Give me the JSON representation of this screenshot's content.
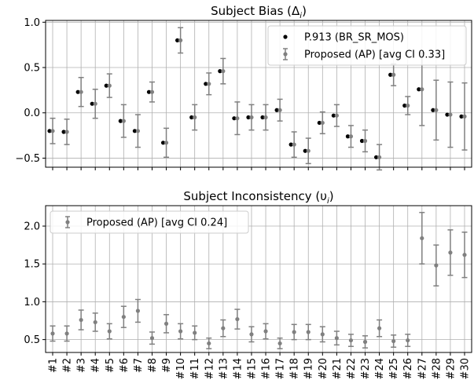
{
  "chart_data": [
    {
      "type": "scatter",
      "title": "Subject Bias (Δ",
      "title_sub": "i",
      "title_end": ")",
      "grid": true,
      "legend_position": "top-right",
      "ylim": [
        -0.6,
        1.02
      ],
      "yticks": [
        -0.5,
        0.0,
        0.5,
        1.0
      ],
      "ytick_labels": [
        "−0.5",
        "0.0",
        "0.5",
        "1.0"
      ],
      "categories": [
        "#1",
        "#2",
        "#3",
        "#4",
        "#5",
        "#6",
        "#7",
        "#8",
        "#9",
        "#10",
        "#11",
        "#12",
        "#13",
        "#14",
        "#15",
        "#16",
        "#17",
        "#18",
        "#19",
        "#20",
        "#21",
        "#22",
        "#23",
        "#24",
        "#25",
        "#26",
        "#27",
        "#28",
        "#29",
        "#30"
      ],
      "series": [
        {
          "name": "P.913 (BR_SR_MOS)",
          "style": "dots",
          "values": [
            -0.2,
            -0.21,
            0.23,
            0.1,
            0.3,
            -0.09,
            -0.2,
            0.23,
            -0.33,
            0.8,
            -0.05,
            0.32,
            0.46,
            -0.06,
            -0.05,
            -0.05,
            0.03,
            -0.35,
            -0.42,
            -0.11,
            -0.03,
            -0.26,
            -0.31,
            -0.49,
            0.42,
            0.08,
            0.26,
            0.03,
            -0.02,
            -0.04
          ]
        },
        {
          "name": "Proposed (AP) [avg CI 0.33]",
          "style": "errorbar",
          "values": [
            -0.2,
            -0.21,
            0.23,
            0.1,
            0.3,
            -0.09,
            -0.2,
            0.23,
            -0.33,
            0.8,
            -0.05,
            0.32,
            0.46,
            -0.06,
            -0.05,
            -0.05,
            0.03,
            -0.35,
            -0.42,
            -0.11,
            -0.03,
            -0.26,
            -0.31,
            -0.49,
            0.42,
            0.08,
            0.26,
            0.03,
            -0.02,
            -0.04
          ],
          "ci": [
            0.14,
            0.14,
            0.16,
            0.16,
            0.13,
            0.18,
            0.18,
            0.11,
            0.16,
            0.14,
            0.14,
            0.12,
            0.14,
            0.18,
            0.14,
            0.14,
            0.12,
            0.14,
            0.14,
            0.12,
            0.12,
            0.12,
            0.12,
            0.14,
            0.12,
            0.1,
            0.4,
            0.33,
            0.36,
            0.37
          ]
        }
      ]
    },
    {
      "type": "scatter",
      "title": "Subject Inconsistency (υ",
      "title_sub": "i",
      "title_end": ")",
      "grid": true,
      "legend_position": "top-left",
      "ylim": [
        0.33,
        2.27
      ],
      "yticks": [
        0.5,
        1.0,
        1.5,
        2.0
      ],
      "ytick_labels": [
        "0.5",
        "1.0",
        "1.5",
        "2.0"
      ],
      "categories": [
        "#1",
        "#2",
        "#3",
        "#4",
        "#5",
        "#6",
        "#7",
        "#8",
        "#9",
        "#10",
        "#11",
        "#12",
        "#13",
        "#14",
        "#15",
        "#16",
        "#17",
        "#18",
        "#19",
        "#20",
        "#21",
        "#22",
        "#23",
        "#24",
        "#25",
        "#26",
        "#27",
        "#28",
        "#29",
        "#30"
      ],
      "series": [
        {
          "name": "Proposed (AP) [avg CI 0.24]",
          "style": "errorbar",
          "values": [
            0.58,
            0.58,
            0.76,
            0.73,
            0.61,
            0.8,
            0.88,
            0.52,
            0.71,
            0.61,
            0.59,
            0.45,
            0.65,
            0.77,
            0.57,
            0.61,
            0.45,
            0.6,
            0.6,
            0.57,
            0.52,
            0.49,
            0.47,
            0.65,
            0.48,
            0.49,
            1.84,
            1.48,
            1.65,
            1.62
          ],
          "ci": [
            0.1,
            0.1,
            0.13,
            0.12,
            0.1,
            0.14,
            0.15,
            0.08,
            0.12,
            0.1,
            0.09,
            0.07,
            0.11,
            0.13,
            0.1,
            0.1,
            0.07,
            0.1,
            0.1,
            0.1,
            0.09,
            0.08,
            0.08,
            0.11,
            0.08,
            0.08,
            0.34,
            0.27,
            0.3,
            0.3
          ]
        }
      ]
    }
  ]
}
